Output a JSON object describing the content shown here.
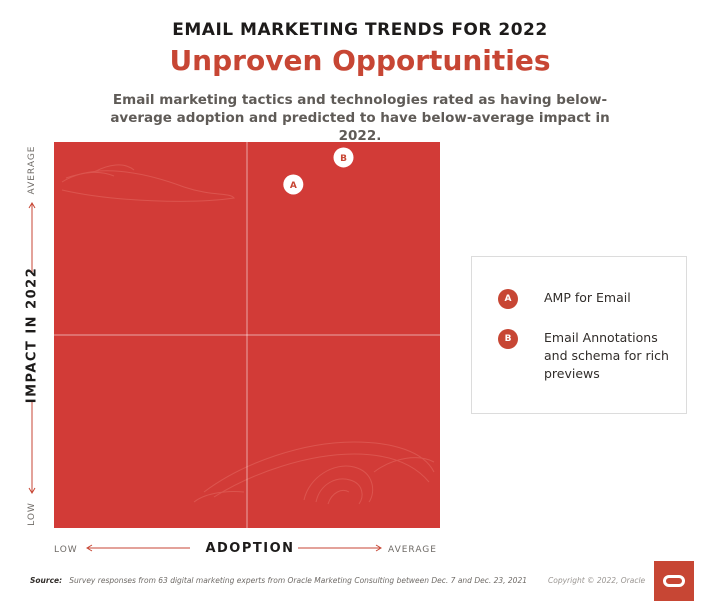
{
  "header": {
    "kicker": "EMAIL MARKETING TRENDS FOR 2022",
    "headline": "Unproven Opportunities",
    "subtitle": "Email marketing tactics and technologies rated as having below-average adoption and predicted to have below-average impact in 2022."
  },
  "chart_data": {
    "type": "scatter",
    "xlabel": "ADOPTION",
    "ylabel": "IMPACT IN 2022",
    "x_ticks": [
      "LOW",
      "AVERAGE"
    ],
    "y_ticks": [
      "LOW",
      "AVERAGE"
    ],
    "xlim": [
      0,
      1
    ],
    "ylim": [
      0,
      1
    ],
    "points": [
      {
        "label": "A",
        "name": "AMP for Email",
        "x": 0.62,
        "y": 0.89
      },
      {
        "label": "B",
        "name": "Email Annotations and schema for rich previews",
        "x": 0.75,
        "y": 0.96
      }
    ],
    "colors": {
      "quadrant": "#d23b37",
      "marker": "#ffffff",
      "accent": "#c74634"
    }
  },
  "legend": {
    "items": [
      {
        "badge": "A",
        "text": "AMP for Email"
      },
      {
        "badge": "B",
        "text": "Email Annotations and schema for rich previews"
      }
    ]
  },
  "footer": {
    "source_label": "Source:",
    "source_text": "Survey responses from 63 digital marketing experts from Oracle Marketing Consulting between Dec. 7 and Dec. 23, 2021",
    "copyright": "Copyright © 2022, Oracle"
  },
  "logo": {
    "icon": "oracle-logo-icon"
  }
}
